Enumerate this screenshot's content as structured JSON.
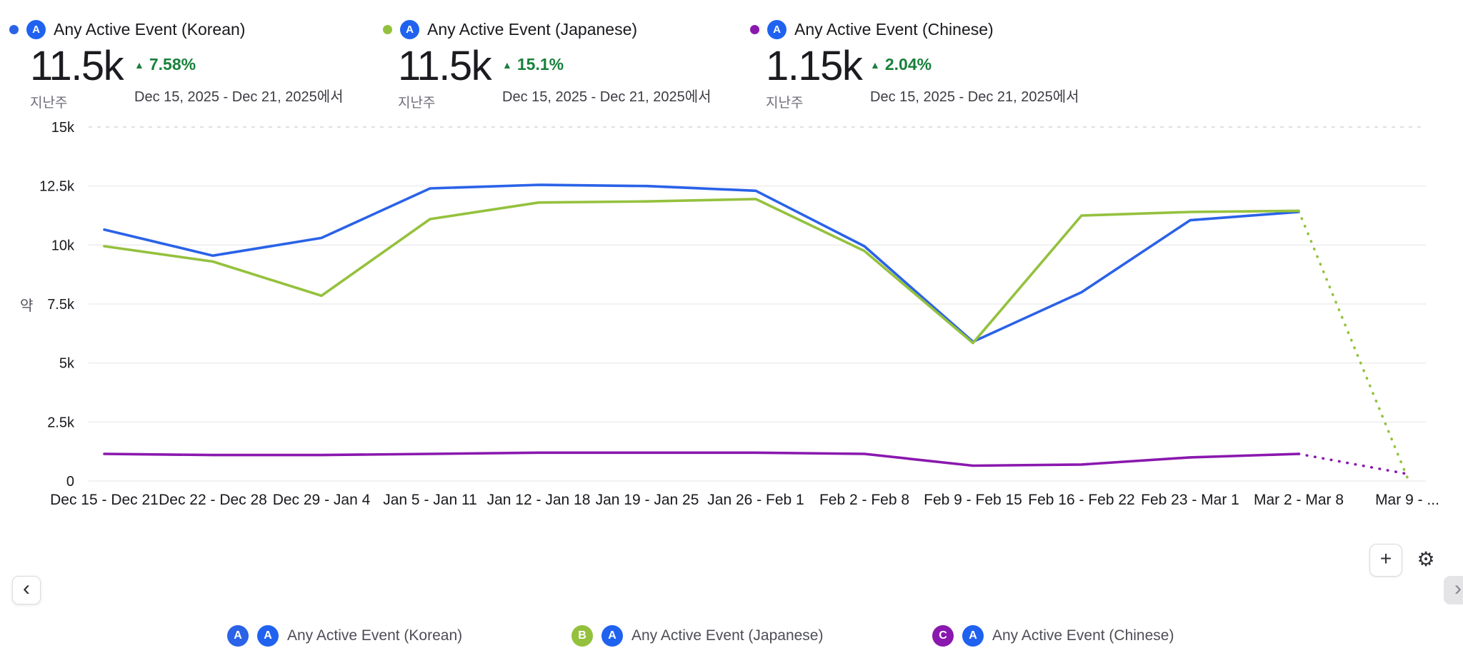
{
  "colors": {
    "amplitude_blue": "#1f62f0",
    "positive_green": "#18813b",
    "korean_blue": "#2a62e8",
    "japanese_green": "#94c13d",
    "chinese_purple": "#8a18ae"
  },
  "icons": {
    "plus": "+",
    "gear": "⚙",
    "chevron_left": "‹",
    "chevron_right": "›",
    "triangle_up": "▲",
    "amplitude_letter": "A"
  },
  "header_legend": [
    {
      "label": "Any Active Event (Korean)"
    },
    {
      "label": "Any Active Event (Japanese)"
    },
    {
      "label": "Any Active Event (Chinese)"
    }
  ],
  "stats": [
    {
      "value": "11.5k",
      "period": "지난주",
      "change": "7.58%",
      "compare_range": "Dec 15, 2025 - Dec 21, 2025에서"
    },
    {
      "value": "11.5k",
      "period": "지난주",
      "change": "15.1%",
      "compare_range": "Dec 15, 2025 - Dec 21, 2025에서"
    },
    {
      "value": "1.15k",
      "period": "지난주",
      "change": "2.04%",
      "compare_range": "Dec 15, 2025 - Dec 21, 2025에서"
    }
  ],
  "chart_data": {
    "type": "line",
    "title": "",
    "xlabel": "",
    "ylabel": "약",
    "ylim": [
      0,
      15000
    ],
    "grid": true,
    "legend_position": "top-and-bottom",
    "yticks": [
      {
        "label": "15k",
        "value": 15000
      },
      {
        "label": "12.5k",
        "value": 12500
      },
      {
        "label": "10k",
        "value": 10000
      },
      {
        "label": "7.5k",
        "value": 7500
      },
      {
        "label": "5k",
        "value": 5000
      },
      {
        "label": "2.5k",
        "value": 2500
      },
      {
        "label": "0",
        "value": 0
      }
    ],
    "categories": [
      "Dec 15 - Dec 21",
      "Dec 22 - Dec 28",
      "Dec 29 - Jan 4",
      "Jan 5 - Jan 11",
      "Jan 12 - Jan 18",
      "Jan 19 - Jan 25",
      "Jan 26 - Feb 1",
      "Feb 2 - Feb 8",
      "Feb 9 - Feb 15",
      "Feb 16 - Feb 22",
      "Feb 23 - Mar 1",
      "Mar 2 - Mar 8",
      "Mar 9 - ..."
    ],
    "series": [
      {
        "name": "Any Active Event (Korean)",
        "letter": "A",
        "color": "#2a62e8",
        "dashed_tail": false,
        "values": [
          10650,
          9550,
          10300,
          12400,
          12550,
          12500,
          12300,
          9950,
          5900,
          8000,
          11050,
          11400,
          null
        ]
      },
      {
        "name": "Any Active Event (Japanese)",
        "letter": "B",
        "color": "#94c13d",
        "dashed_tail": true,
        "values": [
          9950,
          9300,
          7850,
          11100,
          11800,
          11850,
          11950,
          9750,
          5850,
          11250,
          11400,
          11450,
          150
        ]
      },
      {
        "name": "Any Active Event (Chinese)",
        "letter": "C",
        "color": "#8a18ae",
        "dashed_tail": true,
        "values": [
          1150,
          1100,
          1100,
          1150,
          1200,
          1200,
          1200,
          1150,
          650,
          700,
          1000,
          1150,
          300
        ]
      }
    ]
  },
  "bottom_legend": [
    {
      "letter": "A",
      "label": "Any Active Event (Korean)"
    },
    {
      "letter": "B",
      "label": "Any Active Event (Japanese)"
    },
    {
      "letter": "C",
      "label": "Any Active Event (Chinese)"
    }
  ]
}
